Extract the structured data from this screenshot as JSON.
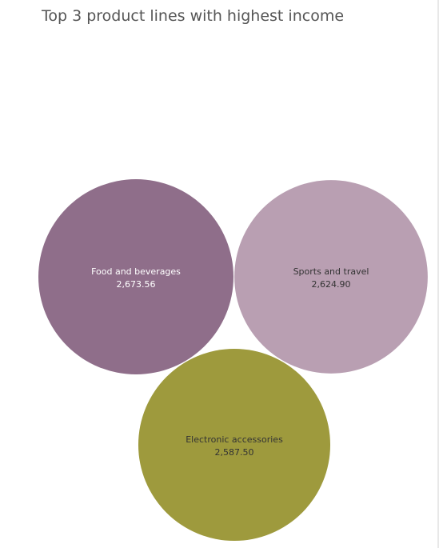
{
  "title": "Top 3 product lines with highest income",
  "chart_data": {
    "type": "bubble",
    "title": "Top 3 product lines with highest income",
    "categories": [
      "Food and beverages",
      "Sports and travel",
      "Electronic accessories"
    ],
    "values": [
      2673.56,
      2624.9,
      2587.5
    ],
    "labels": [
      "2,673.56",
      "2,624.90",
      "2,587.50"
    ],
    "colors": [
      "#8f6e8a",
      "#b99fb2",
      "#9e9a3d"
    ],
    "label_colors": [
      "#ffffff",
      "#333333",
      "#333333"
    ],
    "legend": "none"
  }
}
